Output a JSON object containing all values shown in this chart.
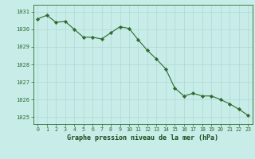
{
  "x": [
    0,
    1,
    2,
    3,
    4,
    5,
    6,
    7,
    8,
    9,
    10,
    11,
    12,
    13,
    14,
    15,
    16,
    17,
    18,
    19,
    20,
    21,
    22,
    23
  ],
  "y": [
    1030.6,
    1030.8,
    1030.4,
    1030.45,
    1030.0,
    1029.55,
    1029.55,
    1029.45,
    1029.8,
    1030.15,
    1030.05,
    1029.4,
    1028.8,
    1028.3,
    1027.75,
    1026.65,
    1026.2,
    1026.35,
    1026.2,
    1026.2,
    1026.0,
    1025.75,
    1025.45,
    1025.1
  ],
  "line_color": "#2d6a2d",
  "marker_color": "#2d6a2d",
  "bg_color": "#c8ece8",
  "grid_color": "#b0d8d4",
  "xlabel": "Graphe pression niveau de la mer (hPa)",
  "xlabel_color": "#1a4a1a",
  "tick_color": "#2d6a2d",
  "label_color": "#2d6a2d",
  "ylim_min": 1024.6,
  "ylim_max": 1031.4,
  "yticks": [
    1025,
    1026,
    1027,
    1028,
    1029,
    1030,
    1031
  ],
  "xticks": [
    0,
    1,
    2,
    3,
    4,
    5,
    6,
    7,
    8,
    9,
    10,
    11,
    12,
    13,
    14,
    15,
    16,
    17,
    18,
    19,
    20,
    21,
    22,
    23
  ]
}
